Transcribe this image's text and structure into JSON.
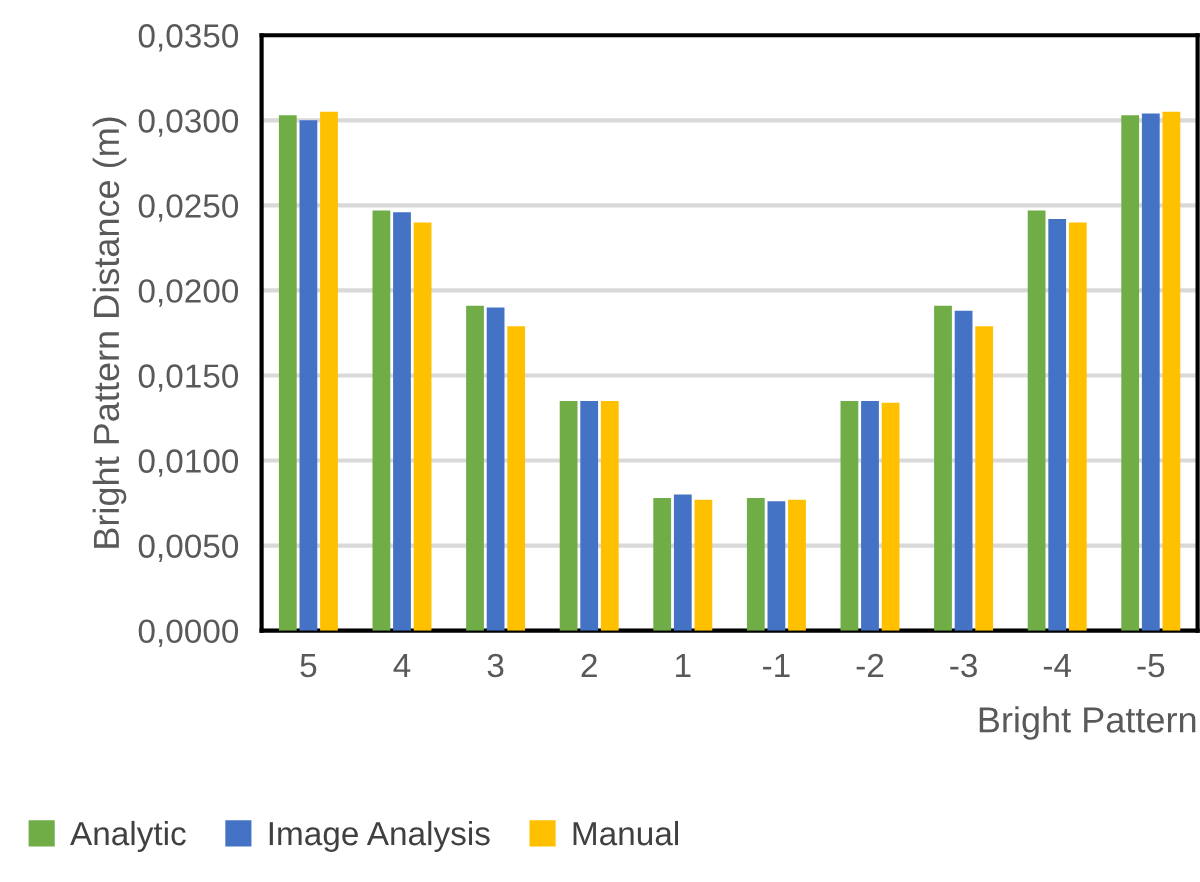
{
  "chart_data": {
    "type": "bar",
    "xlabel": "Bright Pattern",
    "ylabel": "Bright Pattern Distance (m)",
    "categories": [
      "5",
      "4",
      "3",
      "2",
      "1",
      "-1",
      "-2",
      "-3",
      "-4",
      "-5"
    ],
    "series": [
      {
        "name": "Analytic",
        "color": "#70ad47",
        "values": [
          0.0303,
          0.0247,
          0.0191,
          0.0135,
          0.0078,
          0.0078,
          0.0135,
          0.0191,
          0.0247,
          0.0303
        ]
      },
      {
        "name": "Image Analysis",
        "color": "#4472c4",
        "values": [
          0.03,
          0.0246,
          0.019,
          0.0135,
          0.008,
          0.0076,
          0.0135,
          0.0188,
          0.0242,
          0.0304
        ]
      },
      {
        "name": "Manual",
        "color": "#ffc000",
        "values": [
          0.0305,
          0.024,
          0.0179,
          0.0135,
          0.0077,
          0.0077,
          0.0134,
          0.0179,
          0.024,
          0.0305
        ]
      }
    ],
    "ylim": [
      0,
      0.035
    ],
    "yticks": [
      {
        "value": 0,
        "label": "0,0000"
      },
      {
        "value": 0.005,
        "label": "0,0050"
      },
      {
        "value": 0.01,
        "label": "0,0100"
      },
      {
        "value": 0.015,
        "label": "0,0150"
      },
      {
        "value": 0.02,
        "label": "0,0200"
      },
      {
        "value": 0.025,
        "label": "0,0250"
      },
      {
        "value": 0.03,
        "label": "0,0300"
      },
      {
        "value": 0.035,
        "label": "0,0350"
      }
    ],
    "grid": "y",
    "legend": "bottom left"
  }
}
